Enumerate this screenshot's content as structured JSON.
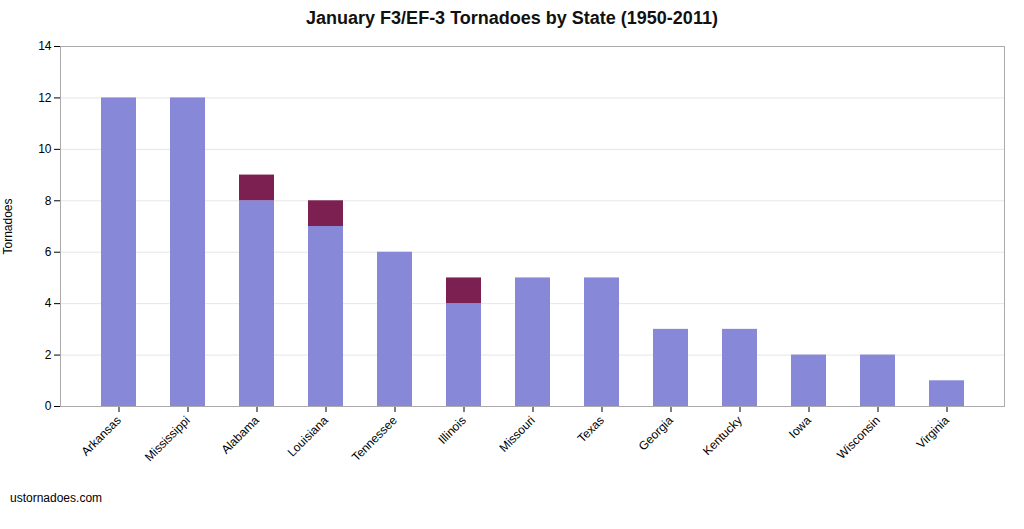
{
  "chart_data": {
    "type": "bar",
    "title": "January F3/EF-3 Tornadoes by State (1950-2011)",
    "ylabel": "Tornadoes",
    "categories": [
      "Arkansas",
      "Mississippi",
      "Alabama",
      "Louisiana",
      "Tennessee",
      "Illinois",
      "Missouri",
      "Texas",
      "Georgia",
      "Kentucky",
      "Iowa",
      "Wisconsin",
      "Virginia"
    ],
    "series": [
      {
        "color": "#8888d8",
        "values": [
          12,
          12,
          8,
          7,
          6,
          4,
          5,
          5,
          3,
          3,
          2,
          2,
          1
        ]
      },
      {
        "color": "#7B2050",
        "values": [
          0,
          0,
          1,
          1,
          0,
          1,
          0,
          0,
          0,
          0,
          0,
          0,
          0
        ]
      }
    ],
    "stacked": true,
    "ylim": [
      0,
      14
    ],
    "yticks": [
      0,
      2,
      4,
      6,
      8,
      10,
      12,
      14
    ],
    "grid": true,
    "caption": "ustornadoes.com"
  }
}
